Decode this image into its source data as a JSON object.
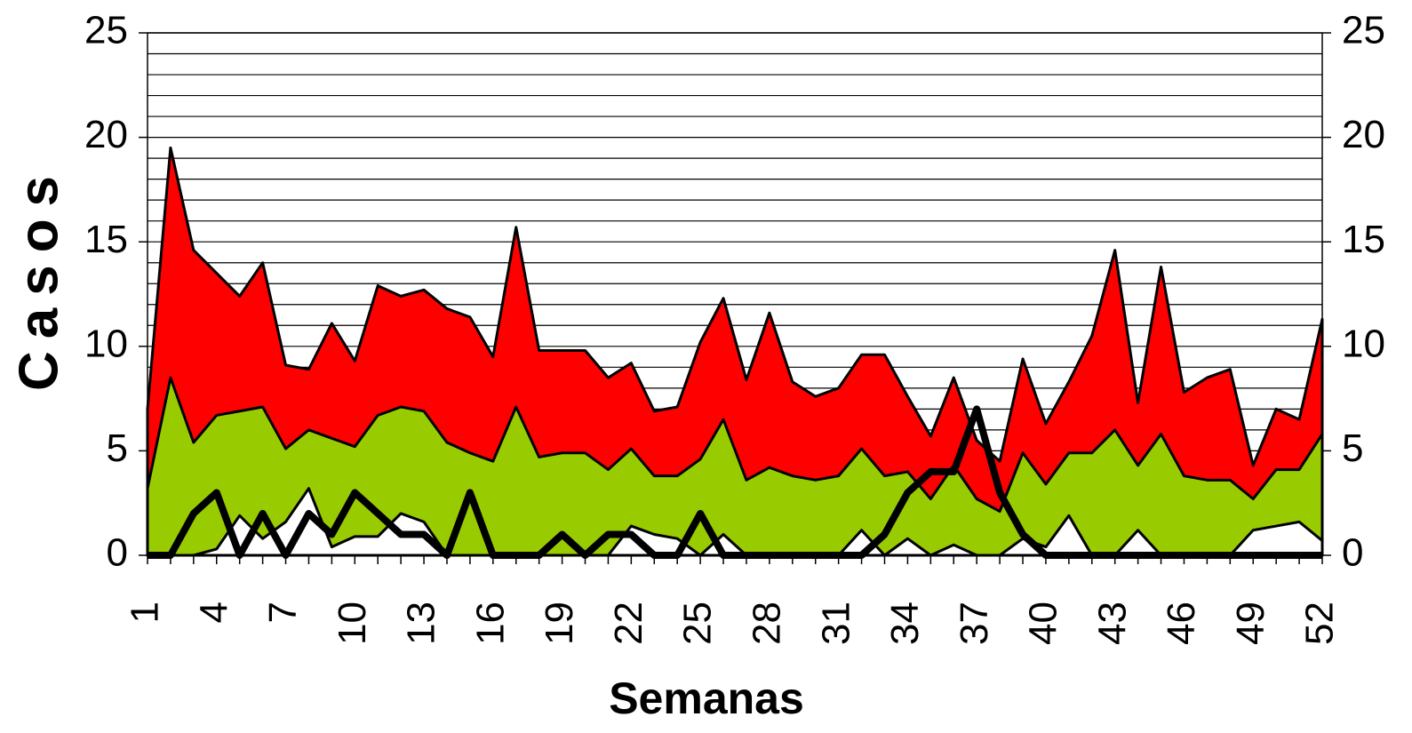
{
  "chart_data": {
    "type": "area",
    "x_label": "Semanas",
    "y_label": "Casos",
    "categories": [
      1,
      null,
      null,
      4,
      null,
      null,
      7,
      null,
      null,
      10,
      null,
      null,
      13,
      null,
      null,
      16,
      null,
      null,
      19,
      null,
      null,
      22,
      null,
      null,
      25,
      null,
      null,
      28,
      null,
      null,
      31,
      null,
      null,
      34,
      null,
      null,
      37,
      null,
      null,
      40,
      null,
      null,
      43,
      null,
      null,
      46,
      null,
      null,
      49,
      null,
      null,
      52
    ],
    "series": [
      {
        "color": "#ff0000",
        "values": [
          7,
          19.5,
          14.6,
          13.5,
          12.4,
          14,
          9.1,
          8.9,
          11.1,
          9.3,
          12.9,
          12.4,
          12.7,
          11.8,
          11.4,
          9.5,
          15.7,
          9.8,
          9.8,
          9.8,
          8.5,
          9.2,
          6.9,
          7.1,
          10.2,
          12.3,
          8.4,
          11.6,
          8.3,
          7.6,
          8,
          9.6,
          9.6,
          7.6,
          5.7,
          8.5,
          5.5,
          4.5,
          9.4,
          6.3,
          8.3,
          10.5,
          14.6,
          7.3,
          13.8,
          7.8,
          8.5,
          8.9,
          4.3,
          7,
          6.5,
          11.3
        ]
      },
      {
        "color": "#99cc00",
        "values": [
          3.2,
          8.5,
          5.4,
          6.7,
          6.9,
          7.1,
          5.1,
          6,
          5.6,
          5.2,
          6.7,
          7.1,
          6.9,
          5.4,
          4.9,
          4.5,
          7.1,
          4.7,
          4.9,
          4.9,
          4.1,
          5.1,
          3.8,
          3.8,
          4.6,
          6.5,
          3.6,
          4.2,
          3.8,
          3.6,
          3.8,
          5.1,
          3.8,
          4,
          2.7,
          4.3,
          2.7,
          2.1,
          4.9,
          3.4,
          4.9,
          4.9,
          6,
          4.3,
          5.8,
          3.8,
          3.6,
          3.6,
          2.7,
          4.1,
          4.1,
          5.8
        ]
      },
      {
        "color": "#ffffff",
        "values": [
          0,
          0,
          0,
          0.3,
          1.9,
          0.8,
          1.6,
          3.2,
          0.4,
          0.9,
          0.9,
          2,
          1.6,
          0,
          0,
          0,
          0,
          0,
          0,
          0,
          0,
          1.4,
          1,
          0.8,
          0,
          1,
          0,
          0,
          0,
          0,
          0,
          1.2,
          0,
          0.8,
          0,
          0.5,
          0,
          0,
          0.8,
          0.4,
          1.9,
          0,
          0,
          1.2,
          0,
          0,
          0,
          0,
          1.2,
          1.4,
          1.6,
          0.7
        ]
      },
      {
        "type": "line",
        "color": "#000000",
        "values": [
          0,
          0,
          2,
          3,
          0,
          2,
          0,
          2,
          1,
          3,
          2,
          1,
          1,
          0,
          3,
          0,
          0,
          0,
          1,
          0,
          1,
          1,
          0,
          0,
          2,
          0,
          0,
          0,
          0,
          0,
          0,
          0,
          1,
          3,
          4,
          4,
          7,
          3,
          1,
          0,
          0,
          0,
          0,
          0,
          0,
          0,
          0,
          0,
          0,
          0,
          0,
          0
        ]
      }
    ],
    "ylim": [
      0,
      25
    ],
    "yticks": [
      0,
      5,
      10,
      15,
      20,
      25
    ],
    "y2lim": [
      0,
      25
    ],
    "y2ticks": [
      0,
      5,
      10,
      15,
      20,
      25
    ],
    "ygrid": [
      1,
      2,
      3,
      4,
      5,
      6,
      7,
      8,
      9,
      10,
      11,
      12,
      13,
      14,
      15,
      16,
      17,
      18,
      19,
      20,
      21,
      22,
      23,
      24,
      25
    ],
    "grid": true
  }
}
